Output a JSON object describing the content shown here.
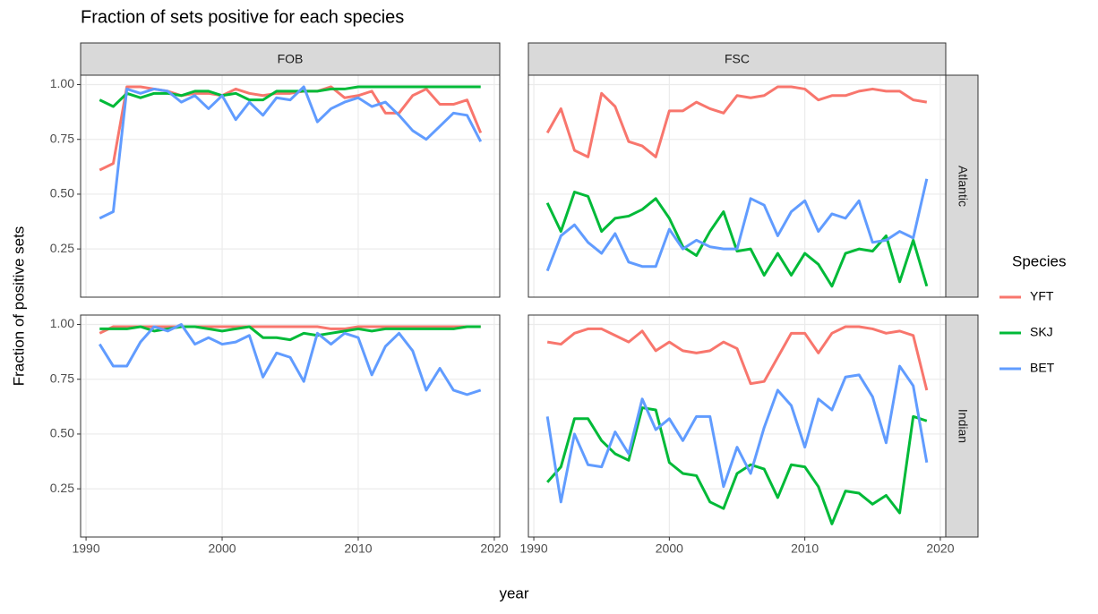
{
  "chart_data": {
    "type": "line",
    "title": "Fraction of sets positive for each species",
    "x_label": "year",
    "y_label": "Fraction of positive sets",
    "legend_title": "Species",
    "col_labels": [
      "FOB",
      "FSC"
    ],
    "row_labels": [
      "Atlantic",
      "Indian"
    ],
    "x": [
      1991,
      1992,
      1993,
      1994,
      1995,
      1996,
      1997,
      1998,
      1999,
      2000,
      2001,
      2002,
      2003,
      2004,
      2005,
      2006,
      2007,
      2008,
      2009,
      2010,
      2011,
      2012,
      2013,
      2014,
      2015,
      2016,
      2017,
      2018,
      2019
    ],
    "xlim": [
      1989.6,
      2020.4
    ],
    "xticks": [
      1990,
      2000,
      2010,
      2020
    ],
    "ylim": [
      0.03,
      1.043
    ],
    "yticks": [
      {
        "value": 0.25,
        "label": "0.25"
      },
      {
        "value": 0.5,
        "label": "0.50"
      },
      {
        "value": 0.75,
        "label": "0.75"
      },
      {
        "value": 1,
        "label": "1.00"
      }
    ],
    "grid": true,
    "series": [
      {
        "name": "YFT",
        "color": "#F8766D"
      },
      {
        "name": "SKJ",
        "color": "#00BA38"
      },
      {
        "name": "BET",
        "color": "#619CFF"
      }
    ],
    "panels": [
      {
        "series": [
          {
            "values": [
              0.61,
              0.64,
              0.99,
              0.99,
              0.98,
              0.97,
              0.95,
              0.96,
              0.96,
              0.95,
              0.98,
              0.96,
              0.95,
              0.96,
              0.96,
              0.97,
              0.97,
              0.99,
              0.94,
              0.95,
              0.97,
              0.87,
              0.87,
              0.95,
              0.98,
              0.91,
              0.91,
              0.93,
              0.78
            ]
          },
          {
            "values": [
              0.93,
              0.9,
              0.96,
              0.94,
              0.96,
              0.96,
              0.95,
              0.97,
              0.97,
              0.95,
              0.96,
              0.93,
              0.93,
              0.97,
              0.97,
              0.97,
              0.97,
              0.98,
              0.98,
              0.99,
              0.99,
              0.99,
              0.99,
              0.99,
              0.99,
              0.99,
              0.99,
              0.99,
              0.99
            ]
          },
          {
            "values": [
              0.39,
              0.42,
              0.98,
              0.96,
              0.98,
              0.97,
              0.92,
              0.95,
              0.89,
              0.95,
              0.84,
              0.92,
              0.86,
              0.94,
              0.93,
              0.99,
              0.83,
              0.89,
              0.92,
              0.94,
              0.9,
              0.92,
              0.86,
              0.79,
              0.75,
              0.81,
              0.87,
              0.86,
              0.74
            ]
          }
        ]
      },
      {
        "series": [
          {
            "values": [
              0.78,
              0.89,
              0.7,
              0.67,
              0.96,
              0.9,
              0.74,
              0.72,
              0.67,
              0.88,
              0.88,
              0.92,
              0.89,
              0.87,
              0.95,
              0.94,
              0.95,
              0.99,
              0.99,
              0.98,
              0.93,
              0.95,
              0.95,
              0.97,
              0.98,
              0.97,
              0.97,
              0.93,
              0.92
            ]
          },
          {
            "values": [
              0.46,
              0.33,
              0.51,
              0.49,
              0.33,
              0.39,
              0.4,
              0.43,
              0.48,
              0.39,
              0.26,
              0.22,
              0.33,
              0.42,
              0.24,
              0.25,
              0.13,
              0.23,
              0.13,
              0.23,
              0.18,
              0.08,
              0.23,
              0.25,
              0.24,
              0.31,
              0.1,
              0.29,
              0.08
            ]
          },
          {
            "values": [
              0.15,
              0.31,
              0.36,
              0.28,
              0.23,
              0.32,
              0.19,
              0.17,
              0.17,
              0.34,
              0.25,
              0.29,
              0.26,
              0.25,
              0.25,
              0.48,
              0.45,
              0.31,
              0.42,
              0.47,
              0.33,
              0.41,
              0.39,
              0.47,
              0.28,
              0.29,
              0.33,
              0.3,
              0.57
            ]
          }
        ]
      },
      {
        "series": [
          {
            "values": [
              0.96,
              0.99,
              0.99,
              0.99,
              0.99,
              0.99,
              0.99,
              0.99,
              0.99,
              0.99,
              0.99,
              0.99,
              0.99,
              0.99,
              0.99,
              0.99,
              0.99,
              0.98,
              0.98,
              0.99,
              0.99,
              0.99,
              0.99,
              0.99,
              0.99,
              0.99,
              0.99,
              0.99,
              0.99
            ]
          },
          {
            "values": [
              0.98,
              0.98,
              0.98,
              0.99,
              0.97,
              0.98,
              0.99,
              0.99,
              0.98,
              0.97,
              0.98,
              0.99,
              0.94,
              0.94,
              0.93,
              0.96,
              0.95,
              0.96,
              0.97,
              0.98,
              0.97,
              0.98,
              0.98,
              0.98,
              0.98,
              0.98,
              0.98,
              0.99,
              0.99
            ]
          },
          {
            "values": [
              0.91,
              0.81,
              0.81,
              0.92,
              0.99,
              0.97,
              1.0,
              0.91,
              0.94,
              0.91,
              0.92,
              0.95,
              0.76,
              0.87,
              0.85,
              0.74,
              0.96,
              0.91,
              0.96,
              0.94,
              0.77,
              0.9,
              0.96,
              0.88,
              0.7,
              0.8,
              0.7,
              0.68,
              0.7
            ]
          }
        ]
      },
      {
        "series": [
          {
            "values": [
              0.92,
              0.91,
              0.96,
              0.98,
              0.98,
              0.95,
              0.92,
              0.97,
              0.88,
              0.92,
              0.88,
              0.87,
              0.88,
              0.92,
              0.89,
              0.73,
              0.74,
              0.85,
              0.96,
              0.96,
              0.87,
              0.96,
              0.99,
              0.99,
              0.98,
              0.96,
              0.97,
              0.95,
              0.7
            ]
          },
          {
            "values": [
              0.28,
              0.35,
              0.57,
              0.57,
              0.47,
              0.41,
              0.38,
              0.62,
              0.61,
              0.37,
              0.32,
              0.31,
              0.19,
              0.16,
              0.32,
              0.36,
              0.34,
              0.21,
              0.36,
              0.35,
              0.26,
              0.09,
              0.24,
              0.23,
              0.18,
              0.22,
              0.14,
              0.58,
              0.56
            ]
          },
          {
            "values": [
              0.58,
              0.19,
              0.5,
              0.36,
              0.35,
              0.51,
              0.41,
              0.66,
              0.52,
              0.57,
              0.47,
              0.58,
              0.58,
              0.26,
              0.44,
              0.32,
              0.53,
              0.7,
              0.63,
              0.44,
              0.66,
              0.61,
              0.76,
              0.77,
              0.67,
              0.46,
              0.81,
              0.72,
              0.37
            ]
          }
        ]
      }
    ]
  }
}
